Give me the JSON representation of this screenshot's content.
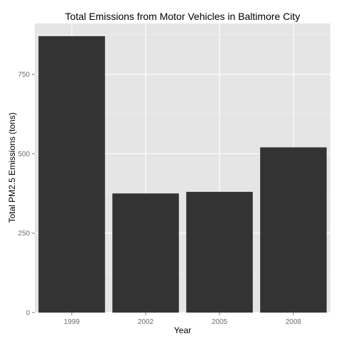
{
  "chart_data": {
    "type": "bar",
    "title": "Total Emissions from Motor Vehicles in Baltimore City",
    "xlabel": "Year",
    "ylabel": "Total PM2.5 Emissions (tons)",
    "categories": [
      "1999",
      "2002",
      "2005",
      "2008"
    ],
    "values": [
      870,
      375,
      380,
      520
    ],
    "ylim": [
      0,
      910
    ],
    "yticks": [
      0,
      250,
      500,
      750
    ],
    "ytick_labels": [
      "0",
      "250",
      "500",
      "750"
    ],
    "grid": true,
    "legend": "none",
    "colors": {
      "bar": "#333333",
      "panel": "#e5e5e5",
      "grid_major": "#ffffff",
      "grid_minor": "#f2f2f2"
    }
  }
}
